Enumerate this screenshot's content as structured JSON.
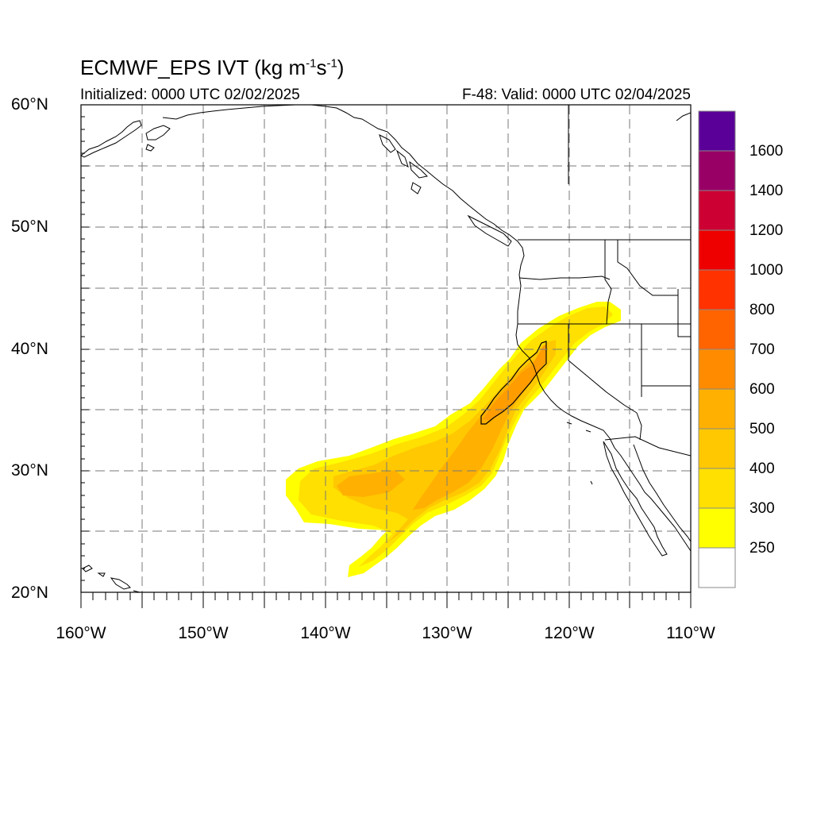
{
  "title": {
    "main": "ECMWF_EPS IVT (kg m",
    "sup1": "-1",
    "mid": "s",
    "sup2": "-1",
    "end": ")"
  },
  "subtitle": {
    "initialized": "Initialized: 0000 UTC 02/02/2025",
    "valid": "F-48: Valid: 0000 UTC 02/04/2025"
  },
  "map": {
    "lat_labels": [
      "60°N",
      "50°N",
      "40°N",
      "30°N",
      "20°N"
    ],
    "lon_labels": [
      "160°W",
      "150°W",
      "140°W",
      "130°W",
      "120°W",
      "110°W"
    ],
    "lon_range": [
      -160,
      -110
    ],
    "lat_range": [
      20,
      60
    ]
  },
  "colorbar": {
    "labels": [
      "1600",
      "1400",
      "1200",
      "1000",
      "800",
      "700",
      "600",
      "500",
      "400",
      "300",
      "250"
    ],
    "colors": [
      "#ffffff",
      "#ffff00",
      "#ffe000",
      "#ffc800",
      "#ffb000",
      "#ff8c00",
      "#ff6400",
      "#ff3200",
      "#ee0000",
      "#cc0033",
      "#990066",
      "#5a0099"
    ]
  }
}
